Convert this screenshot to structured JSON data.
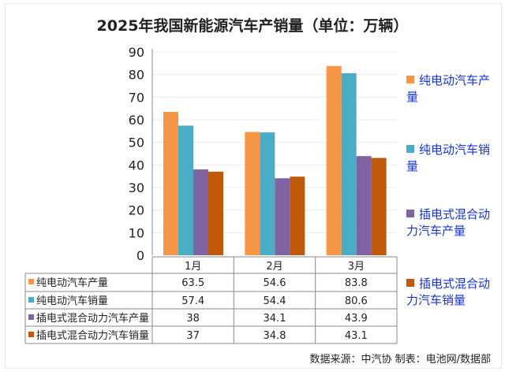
{
  "chart_data": {
    "type": "bar",
    "title": "2025年我国新能源汽车产销量（单位：万辆）",
    "categories": [
      "1月",
      "2月",
      "3月"
    ],
    "series": [
      {
        "name": "纯电动汽车产量",
        "values": [
          63.5,
          54.6,
          83.8
        ],
        "color": "#f79646"
      },
      {
        "name": "纯电动汽车销量",
        "values": [
          57.4,
          54.4,
          80.6
        ],
        "color": "#4bacc6"
      },
      {
        "name": "插电式混合动力汽车产量",
        "values": [
          38,
          34.1,
          43.9
        ],
        "color": "#8064a2"
      },
      {
        "name": "插电式混合动力汽车销量",
        "values": [
          37,
          34.8,
          43.1
        ],
        "color": "#c0590a"
      }
    ],
    "ylim": [
      0,
      90
    ],
    "yticks": [
      0,
      10,
      20,
      30,
      40,
      50,
      60,
      70,
      80,
      90
    ],
    "grid": true,
    "legend": "right",
    "data_table": true
  },
  "source": "数据来源：中汽协  制表：电池网/数据部"
}
